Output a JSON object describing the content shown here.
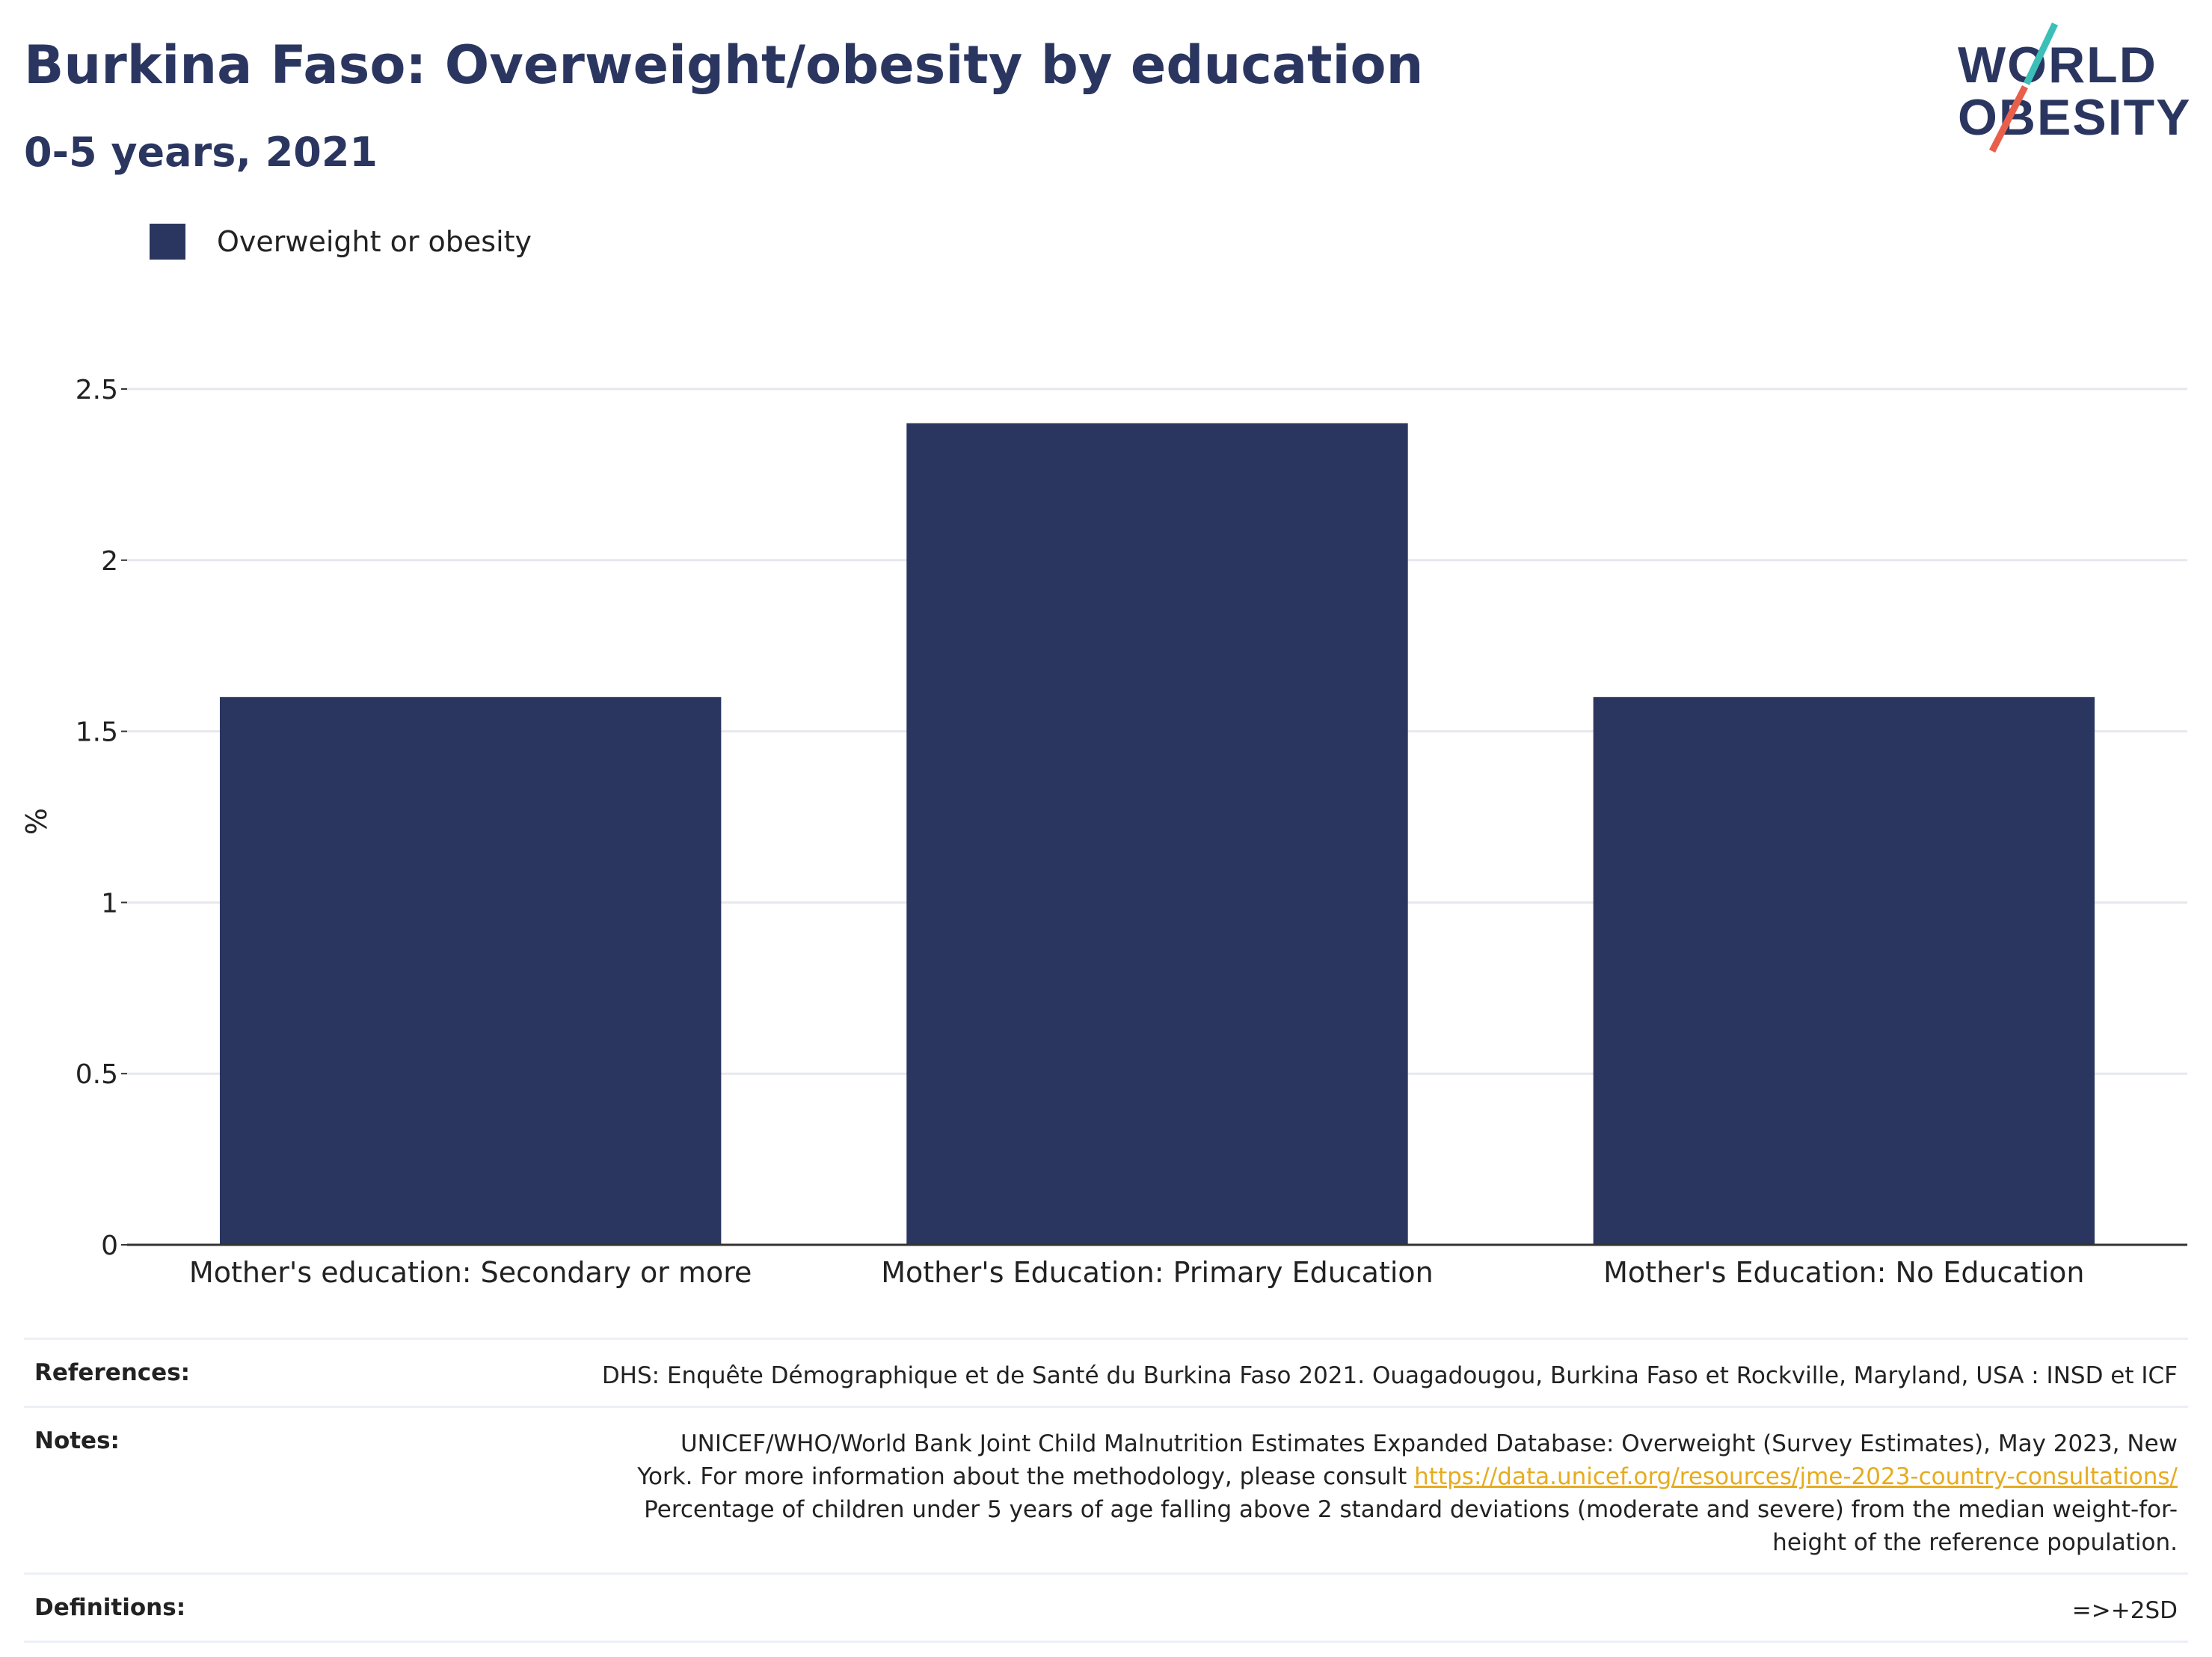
{
  "header": {
    "title": "Burkina Faso: Overweight/obesity by education",
    "subtitle": "0-5 years, 2021"
  },
  "logo": {
    "line1": "WORLD",
    "line2": "OBESITY",
    "accent_teal": "#3bbfb8",
    "accent_red": "#e8604c"
  },
  "legend": {
    "label": "Overweight or obesity",
    "color": "#2b3660"
  },
  "chart_data": {
    "type": "bar",
    "categories": [
      "Mother's education: Secondary or more",
      "Mother's Education: Primary Education",
      "Mother's Education: No Education"
    ],
    "series": [
      {
        "name": "Overweight or obesity",
        "values": [
          1.6,
          2.4,
          1.6
        ],
        "color": "#2b3660"
      }
    ],
    "ylabel": "%",
    "ylim": [
      0,
      2.5
    ],
    "yticks": [
      "0",
      "0.5",
      "1",
      "1.5",
      "2",
      "2.5"
    ],
    "grid": true
  },
  "references": {
    "references_label": "References:",
    "references_text": "DHS: Enquête Démographique et de Santé du Burkina Faso 2021. Ouagadougou, Burkina Faso et Rockville, Maryland, USA : INSD et ICF",
    "notes_label": "Notes:",
    "notes_line1": "UNICEF/WHO/World Bank Joint Child Malnutrition Estimates Expanded Database: Overweight (Survey Estimates), May 2023, New",
    "notes_line2": "York. For more information about the methodology, please consult ",
    "notes_link": "https://data.unicef.org/resources/jme-2023-country-consultations/",
    "notes_line3": "Percentage of children under 5 years of age falling above 2 standard deviations (moderate and severe) from the median weight-for-",
    "notes_line4": "height of the reference population.",
    "definitions_label": "Definitions:",
    "definitions_text": "=>+2SD"
  }
}
